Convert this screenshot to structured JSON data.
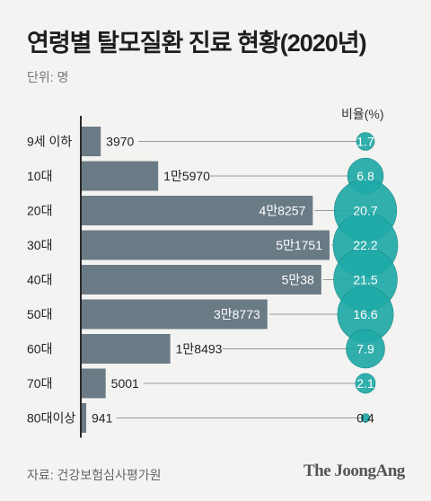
{
  "title": "연령별 탈모질환 진료 현황(2020년)",
  "unit": "단위: 명",
  "ratio_header": "비율(%)",
  "source": "자료: 건강보험심사평가원",
  "brand": "The JoongAng",
  "colors": {
    "bar": "#6b7b86",
    "axis": "#2a2a2a",
    "bubble": "#1fa9a7",
    "bubble_overlap": "#178c8a",
    "leader": "#999999"
  },
  "chart_data": {
    "type": "bar",
    "orientation": "horizontal",
    "categories": [
      "9세 이하",
      "10대",
      "20대",
      "30대",
      "40대",
      "50대",
      "60대",
      "70대",
      "80대이상"
    ],
    "values": [
      3970,
      15970,
      48257,
      51751,
      50038,
      38773,
      18493,
      5001,
      941
    ],
    "value_labels": [
      "3970",
      "1만5970",
      "4만8257",
      "5만1751",
      "5만38",
      "3만8773",
      "1만8493",
      "5001",
      "941"
    ],
    "ratio_values": [
      1.7,
      6.8,
      20.7,
      22.2,
      21.5,
      16.6,
      7.9,
      2.1,
      0.4
    ],
    "ratio_labels": [
      "1.7",
      "6.8",
      "20.7",
      "22.2",
      "21.5",
      "16.6",
      "7.9",
      "2.1",
      "0.4"
    ],
    "xlim": [
      0,
      51751
    ],
    "xlabel": "",
    "ylabel": "",
    "title": "연령별 탈모질환 진료 현황(2020년)"
  }
}
